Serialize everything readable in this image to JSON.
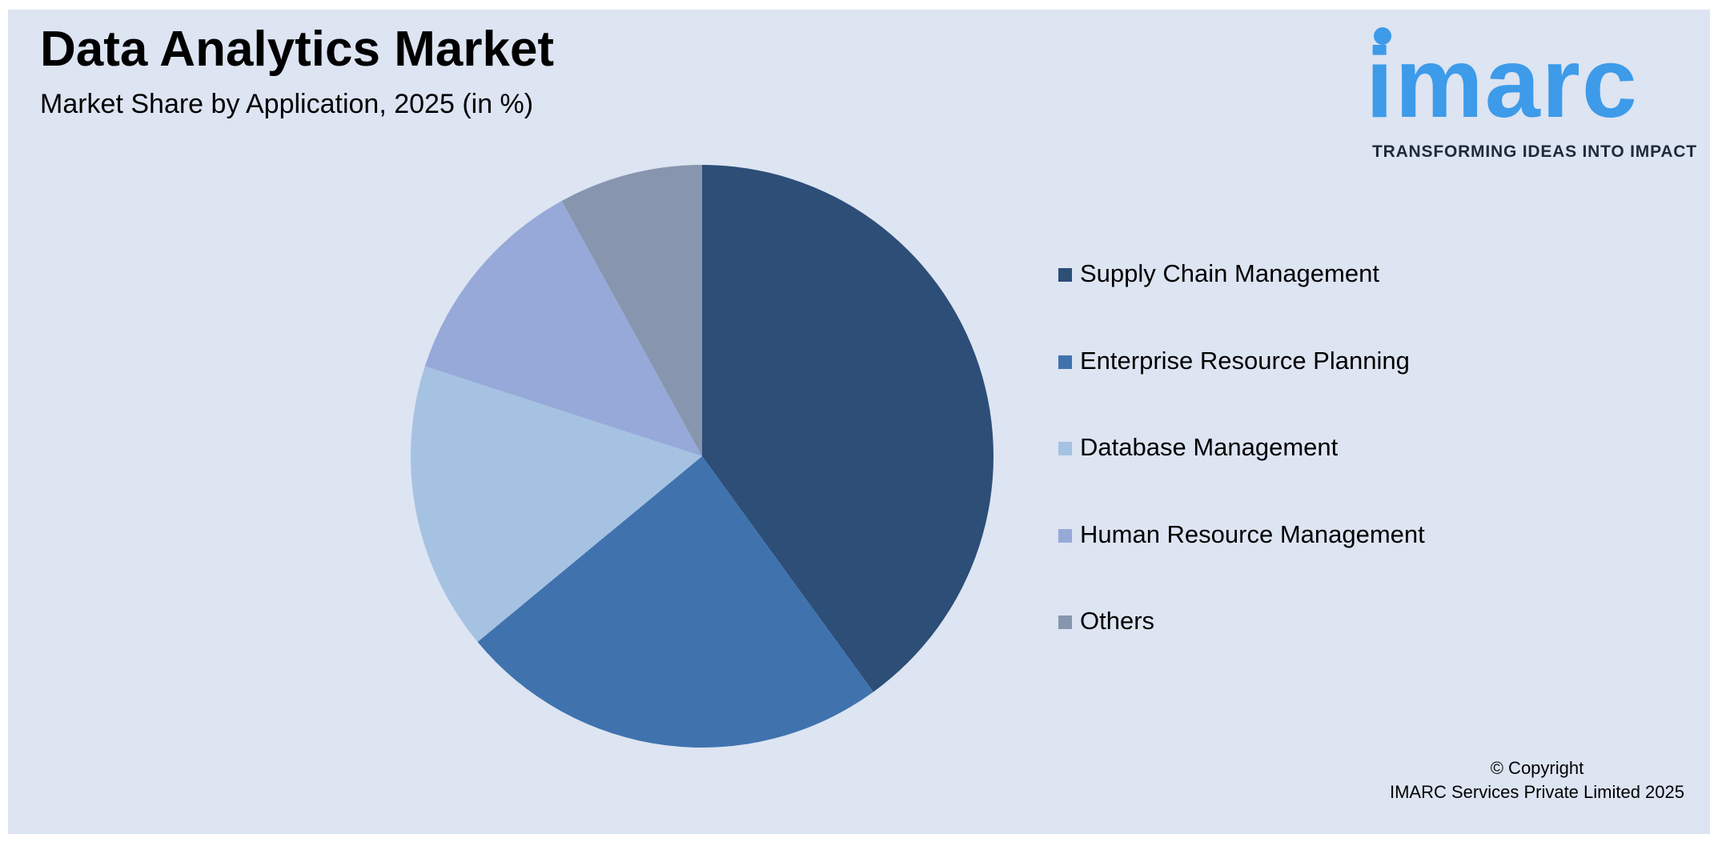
{
  "header": {
    "title": "Data Analytics Market",
    "subtitle": "Market Share by Application, 2025 (in %)"
  },
  "logo": {
    "wordmark": "imarc",
    "tagline": "TRANSFORMING IDEAS INTO IMPACT",
    "color": "#3d9be9"
  },
  "chart_data": {
    "type": "pie",
    "title": "Data Analytics Market",
    "subtitle": "Market Share by Application, 2025 (in %)",
    "legend_position": "right",
    "categories": [
      "Supply Chain Management",
      "Enterprise Resource Planning",
      "Database Management",
      "Human Resource Management",
      "Others"
    ],
    "values": [
      40,
      24,
      16,
      12,
      8
    ],
    "colors": [
      "#2c4e77",
      "#4073ae",
      "#a6c2e2",
      "#96a9d8",
      "#8796ae"
    ]
  },
  "footer": {
    "copyright_line1": "© Copyright",
    "copyright_line2": "IMARC Services Private Limited 2025"
  }
}
